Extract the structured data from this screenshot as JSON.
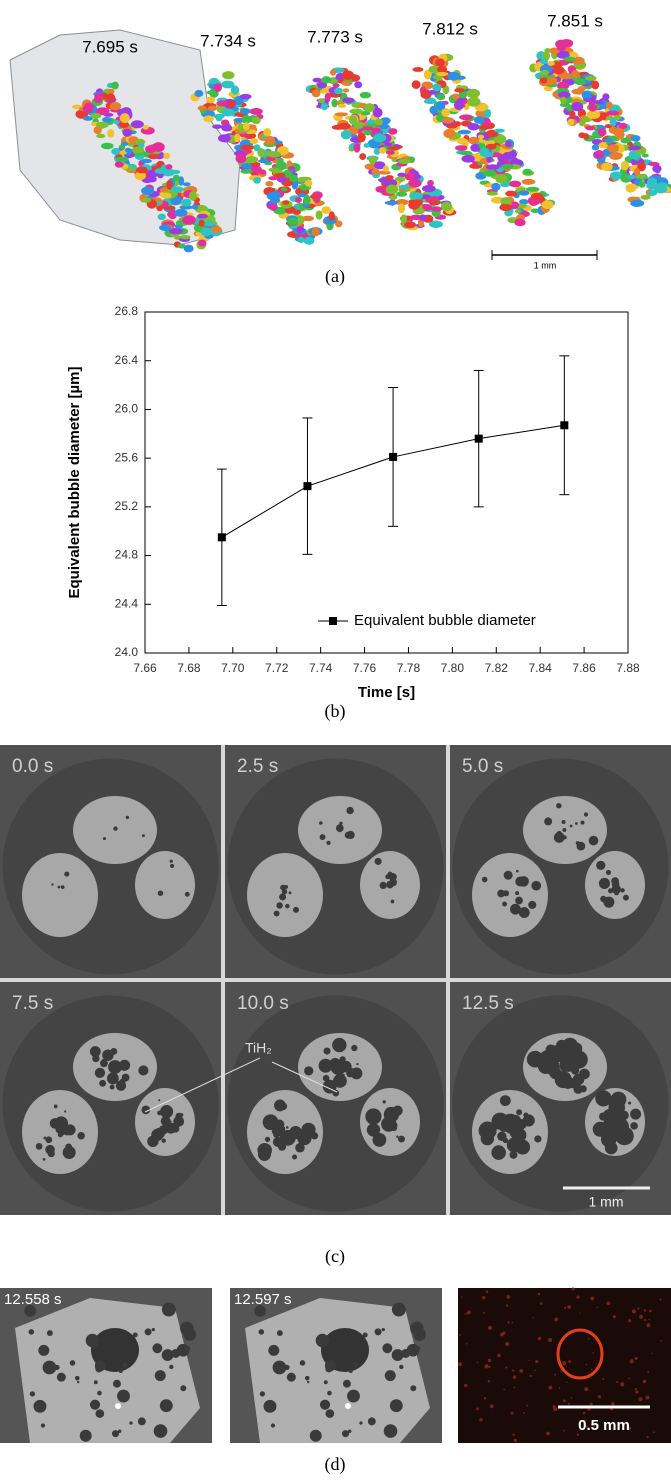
{
  "panels": {
    "a": {
      "times": [
        "7.695 s",
        "7.734 s",
        "7.773 s",
        "7.812 s",
        "7.851 s"
      ],
      "scale_bar": "1 mm",
      "label": "(a)"
    },
    "b": {
      "label": "(b)"
    },
    "c": {
      "times": [
        "0.0 s",
        "2.5 s",
        "5.0 s",
        "7.5 s",
        "10.0 s",
        "12.5 s"
      ],
      "annotation": "TiH₂",
      "scale_bar": "1 mm",
      "label": "(c)"
    },
    "d": {
      "times": [
        "12.558 s",
        "12.597 s"
      ],
      "scale_bar": "0.5 mm",
      "label": "(d)"
    }
  },
  "chart_data": {
    "type": "line",
    "xlabel": "Time [s]",
    "ylabel": "Equivalent bubble diameter [µm]",
    "x": [
      7.695,
      7.734,
      7.773,
      7.812,
      7.851
    ],
    "series": [
      {
        "name": "Equivalent bubble diameter",
        "color": "#000000",
        "marker": "square",
        "values": [
          24.95,
          25.37,
          25.61,
          25.76,
          25.87
        ],
        "errors": [
          0.56,
          0.56,
          0.57,
          0.56,
          0.57
        ]
      }
    ],
    "xlim": [
      7.66,
      7.88
    ],
    "ylim": [
      24.0,
      26.8
    ],
    "xticks": [
      7.66,
      7.68,
      {
        "value": 7.7,
        "label": "7.70"
      },
      7.72,
      7.74,
      7.76,
      7.78,
      {
        "value": 7.8,
        "label": "7.80"
      },
      7.82,
      7.84,
      7.86,
      7.88
    ],
    "yticks": [
      {
        "value": 24.0,
        "label": "24.0"
      },
      24.4,
      24.8,
      25.2,
      25.6,
      {
        "value": 26.0,
        "label": "26.0"
      },
      26.4,
      26.8
    ],
    "legend": "lower right"
  }
}
